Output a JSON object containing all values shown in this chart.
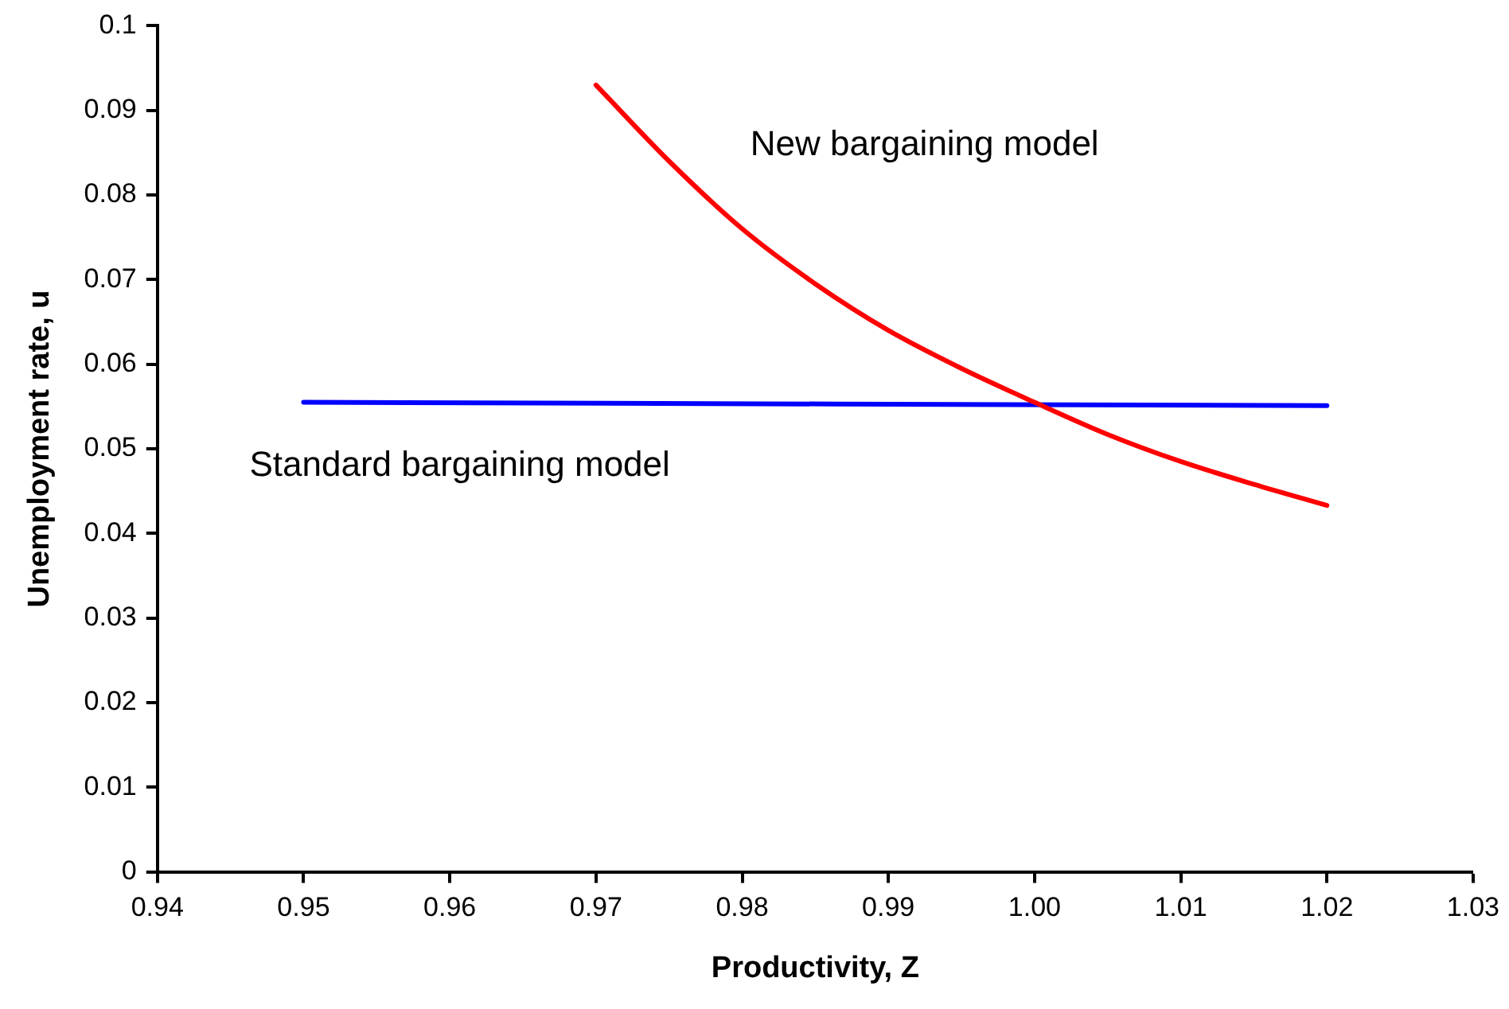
{
  "chart_data": {
    "type": "line",
    "xlabel": "Productivity, Z",
    "ylabel": "Unemployment rate, u",
    "xlim": [
      0.94,
      1.03
    ],
    "xticks": [
      0.94,
      0.95,
      0.96,
      0.97,
      0.98,
      0.99,
      {
        "value": 1,
        "label": "1.00"
      },
      1.01,
      1.02,
      1.03
    ],
    "ylim": [
      0,
      0.1
    ],
    "yticks": [
      0,
      0.01,
      0.02,
      0.03,
      0.04,
      0.05,
      0.06,
      0.07,
      0.08,
      0.09,
      0.1
    ],
    "grid": false,
    "legend": false,
    "marker": "none",
    "line_style": "solid",
    "series": [
      {
        "name": "New bargaining model",
        "color": "#ff0000",
        "x": [
          0.97,
          0.975,
          0.98,
          0.985,
          0.99,
          0.995,
          1.0,
          1.005,
          1.01,
          1.015,
          1.02
        ],
        "values": [
          0.093,
          0.084,
          0.076,
          0.0695,
          0.064,
          0.0595,
          0.0555,
          0.0517,
          0.0485,
          0.0458,
          0.0433
        ]
      },
      {
        "name": "Standard bargaining model",
        "color": "#0000ff",
        "x": [
          0.95,
          1.02
        ],
        "values": [
          0.0555,
          0.0551
        ]
      }
    ]
  }
}
